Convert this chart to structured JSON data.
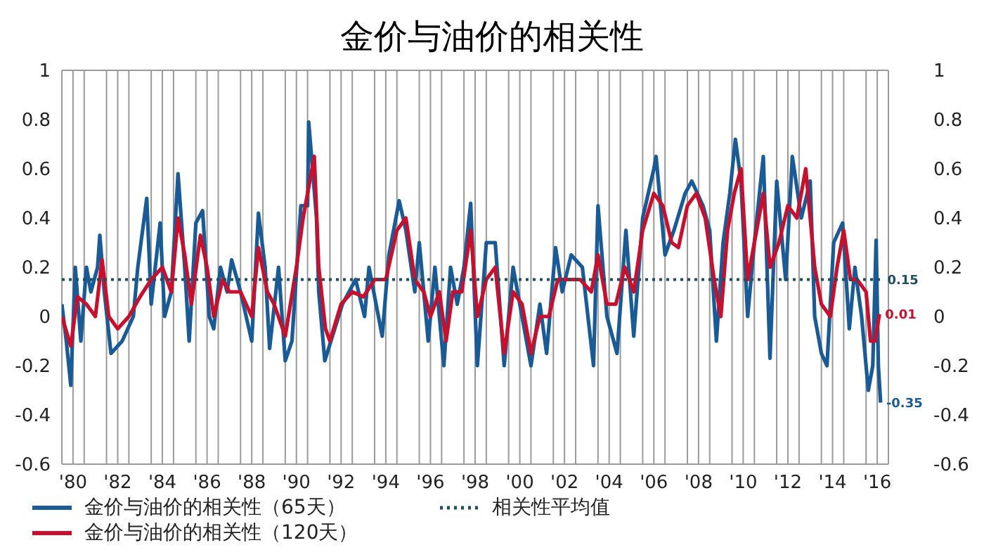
{
  "chart_data": {
    "type": "line",
    "title": "金价与油价的相关性",
    "xlim": [
      1979.5,
      2016.5
    ],
    "xticks": [
      {
        "value": 1980,
        "label": "'80"
      },
      {
        "value": 1982,
        "label": "'82"
      },
      {
        "value": 1984,
        "label": "'84"
      },
      {
        "value": 1986,
        "label": "'86"
      },
      {
        "value": 1988,
        "label": "'88"
      },
      {
        "value": 1990,
        "label": "'90"
      },
      {
        "value": 1992,
        "label": "'92"
      },
      {
        "value": 1994,
        "label": "'94"
      },
      {
        "value": 1996,
        "label": "'96"
      },
      {
        "value": 1998,
        "label": "'98"
      },
      {
        "value": 2000,
        "label": "'00"
      },
      {
        "value": 2002,
        "label": "'02"
      },
      {
        "value": 2004,
        "label": "'04"
      },
      {
        "value": 2006,
        "label": "'06"
      },
      {
        "value": 2008,
        "label": "'08"
      },
      {
        "value": 2010,
        "label": "'10"
      },
      {
        "value": 2012,
        "label": "'12"
      },
      {
        "value": 2014,
        "label": "'14"
      },
      {
        "value": 2016,
        "label": "'16"
      },
      {
        "value": 1980.5,
        "label": null
      },
      {
        "value": 1981.5,
        "label": null
      },
      {
        "value": 1982.5,
        "label": null
      },
      {
        "value": 1983.5,
        "label": null
      },
      {
        "value": 1984.5,
        "label": null
      },
      {
        "value": 1985.5,
        "label": null
      },
      {
        "value": 1986.5,
        "label": null
      },
      {
        "value": 1987.5,
        "label": null
      },
      {
        "value": 1988.5,
        "label": null
      },
      {
        "value": 1989.5,
        "label": null
      },
      {
        "value": 1990.5,
        "label": null
      },
      {
        "value": 1991.5,
        "label": null
      },
      {
        "value": 1992.5,
        "label": null
      },
      {
        "value": 1993.5,
        "label": null
      },
      {
        "value": 1994.5,
        "label": null
      },
      {
        "value": 1995.5,
        "label": null
      },
      {
        "value": 1996.5,
        "label": null
      },
      {
        "value": 1997.5,
        "label": null
      },
      {
        "value": 1998.5,
        "label": null
      },
      {
        "value": 1999.5,
        "label": null
      },
      {
        "value": 2000.5,
        "label": null
      },
      {
        "value": 2001.5,
        "label": null
      },
      {
        "value": 2002.5,
        "label": null
      },
      {
        "value": 2003.5,
        "label": null
      },
      {
        "value": 2004.5,
        "label": null
      },
      {
        "value": 2005.5,
        "label": null
      },
      {
        "value": 2006.5,
        "label": null
      },
      {
        "value": 2007.5,
        "label": null
      },
      {
        "value": 2008.5,
        "label": null
      },
      {
        "value": 2009.5,
        "label": null
      },
      {
        "value": 2010.5,
        "label": null
      },
      {
        "value": 2011.5,
        "label": null
      },
      {
        "value": 2012.5,
        "label": null
      },
      {
        "value": 2013.5,
        "label": null
      },
      {
        "value": 2014.5,
        "label": null
      },
      {
        "value": 2015.5,
        "label": null
      },
      {
        "value": 2016.5,
        "label": null
      }
    ],
    "ylim": [
      -0.6,
      1
    ],
    "yticks": [
      -0.6,
      -0.4,
      -0.2,
      0,
      0.2,
      0.4,
      0.6,
      0.8,
      1
    ],
    "y2lim": [
      -0.6,
      1
    ],
    "y2ticks": [
      -0.6,
      -0.4,
      -0.2,
      0,
      0.2,
      0.4,
      0.6,
      0.8,
      1
    ],
    "grid": true,
    "legend": "bottom left",
    "series": [
      {
        "name": "金价与油价的相关性（65天）",
        "color": "#1a5b96",
        "x": [
          1979.5,
          1979.7,
          1979.9,
          1980.1,
          1980.35,
          1980.6,
          1980.8,
          1981.1,
          1981.2,
          1981.4,
          1981.7,
          1982.2,
          1982.7,
          1982.9,
          1983.3,
          1983.5,
          1983.9,
          1984.1,
          1984.4,
          1984.7,
          1985.0,
          1985.2,
          1985.5,
          1985.8,
          1986.1,
          1986.3,
          1986.6,
          1986.9,
          1987.1,
          1987.5,
          1988.0,
          1988.3,
          1988.6,
          1988.8,
          1989.2,
          1989.5,
          1989.8,
          1990.2,
          1990.5,
          1990.55,
          1990.9,
          1991.0,
          1991.27,
          1992.06,
          1992.65,
          1993.05,
          1993.25,
          1993.84,
          1994.14,
          1994.6,
          1994.9,
          1995.3,
          1995.5,
          1995.9,
          1996.2,
          1996.6,
          1996.9,
          1997.2,
          1997.5,
          1997.8,
          1998.1,
          1998.5,
          1998.9,
          1999.3,
          1999.7,
          2000.1,
          2000.5,
          2000.9,
          2001.2,
          2001.6,
          2001.9,
          2002.3,
          2002.8,
          2003.3,
          2003.5,
          2003.9,
          2004.35,
          2004.75,
          2005.1,
          2005.5,
          2006.0,
          2006.1,
          2006.5,
          2006.9,
          2007.4,
          2007.7,
          2008.2,
          2008.5,
          2008.8,
          2009.1,
          2009.4,
          2009.65,
          2009.9,
          2010.2,
          2010.5,
          2010.9,
          2011.2,
          2011.5,
          2011.9,
          2012.2,
          2012.6,
          2013.0,
          2013.2,
          2013.5,
          2013.75,
          2014.05,
          2014.45,
          2014.75,
          2015.0,
          2015.3,
          2015.6,
          2015.8,
          2015.95,
          2016.05,
          2016.15
        ],
        "values": [
          0.05,
          -0.1,
          -0.28,
          0.2,
          -0.1,
          0.2,
          0.1,
          0.2,
          0.33,
          0.1,
          -0.15,
          -0.1,
          0.0,
          0.2,
          0.48,
          0.05,
          0.38,
          0.0,
          0.1,
          0.58,
          0.2,
          -0.1,
          0.38,
          0.43,
          0.0,
          -0.05,
          0.2,
          0.1,
          0.23,
          0.1,
          -0.1,
          0.42,
          0.2,
          -0.13,
          0.2,
          -0.18,
          -0.1,
          0.45,
          0.45,
          0.79,
          0.4,
          0.1,
          -0.18,
          0.05,
          0.15,
          0.0,
          0.2,
          -0.08,
          0.25,
          0.47,
          0.35,
          0.1,
          0.3,
          -0.1,
          0.2,
          -0.2,
          0.2,
          0.05,
          0.2,
          0.46,
          -0.2,
          0.3,
          0.3,
          -0.2,
          0.2,
          0.0,
          -0.2,
          0.05,
          -0.15,
          0.28,
          0.1,
          0.25,
          0.2,
          -0.2,
          0.45,
          0.0,
          -0.15,
          0.35,
          -0.08,
          0.4,
          0.6,
          0.65,
          0.25,
          0.35,
          0.5,
          0.55,
          0.45,
          0.35,
          -0.1,
          0.3,
          0.5,
          0.72,
          0.55,
          0.0,
          0.3,
          0.65,
          -0.17,
          0.55,
          0.15,
          0.65,
          0.4,
          0.55,
          0.0,
          -0.15,
          -0.2,
          0.3,
          0.38,
          -0.05,
          0.2,
          0.0,
          -0.3,
          -0.2,
          0.31,
          -0.2,
          -0.35
        ]
      },
      {
        "name": "金价与油价的相关性（120天）",
        "color": "#c8102e",
        "x": [
          1979.5,
          1979.9,
          1980.2,
          1980.6,
          1981.0,
          1981.3,
          1981.6,
          1982.0,
          1982.5,
          1983.0,
          1983.5,
          1984.0,
          1984.4,
          1984.7,
          1985.0,
          1985.3,
          1985.7,
          1986.0,
          1986.3,
          1986.7,
          1987.0,
          1987.5,
          1988.0,
          1988.3,
          1988.7,
          1989.0,
          1989.5,
          1990.0,
          1990.3,
          1990.6,
          1990.8,
          1991.0,
          1991.3,
          1991.5,
          1992.0,
          1992.5,
          1993.0,
          1993.5,
          1994.0,
          1994.5,
          1994.9,
          1995.3,
          1995.7,
          1996.0,
          1996.4,
          1996.7,
          1997.0,
          1997.4,
          1997.8,
          1998.1,
          1998.5,
          1998.9,
          1999.3,
          1999.7,
          2000.1,
          2000.5,
          2000.9,
          2001.3,
          2001.7,
          2002.2,
          2002.7,
          2003.2,
          2003.5,
          2003.9,
          2004.3,
          2004.7,
          2005.1,
          2005.5,
          2006.0,
          2006.4,
          2006.8,
          2007.1,
          2007.5,
          2007.9,
          2008.3,
          2008.7,
          2009.0,
          2009.3,
          2009.6,
          2009.9,
          2010.2,
          2010.6,
          2010.9,
          2011.2,
          2011.6,
          2012.0,
          2012.4,
          2012.8,
          2013.2,
          2013.5,
          2013.9,
          2014.2,
          2014.5,
          2014.8,
          2015.1,
          2015.5,
          2015.7,
          2015.9,
          2016.1
        ],
        "values": [
          0.0,
          -0.12,
          0.08,
          0.05,
          0.0,
          0.23,
          0.0,
          -0.05,
          0.0,
          0.08,
          0.15,
          0.2,
          0.1,
          0.4,
          0.25,
          0.05,
          0.33,
          0.2,
          0.0,
          0.15,
          0.1,
          0.1,
          0.0,
          0.28,
          0.1,
          0.05,
          -0.08,
          0.2,
          0.4,
          0.55,
          0.65,
          0.2,
          -0.05,
          -0.1,
          0.05,
          0.1,
          0.08,
          0.15,
          0.15,
          0.35,
          0.4,
          0.15,
          0.1,
          0.0,
          0.1,
          -0.1,
          0.1,
          0.1,
          0.35,
          0.0,
          0.15,
          0.2,
          -0.15,
          0.1,
          0.05,
          -0.15,
          0.0,
          0.0,
          0.15,
          0.15,
          0.15,
          0.1,
          0.25,
          0.05,
          0.05,
          0.2,
          0.1,
          0.35,
          0.5,
          0.45,
          0.3,
          0.28,
          0.45,
          0.5,
          0.4,
          0.15,
          0.0,
          0.35,
          0.5,
          0.6,
          0.15,
          0.35,
          0.5,
          0.2,
          0.3,
          0.45,
          0.4,
          0.6,
          0.2,
          0.05,
          0.0,
          0.2,
          0.35,
          0.15,
          0.15,
          0.1,
          -0.1,
          -0.1,
          0.01
        ]
      },
      {
        "name": "相关性平均值",
        "color": "#1f4e5f",
        "line_style": "dotted",
        "x": [
          1979.5,
          2016.2
        ],
        "values": [
          0.15,
          0.15
        ]
      }
    ],
    "annotations": [
      {
        "text": "0.15",
        "x": 2016.2,
        "y": 0.15
      },
      {
        "text": "0.01",
        "x": 2016.1,
        "y": 0.01
      },
      {
        "text": "-0.35",
        "x": 2016.15,
        "y": -0.35
      }
    ]
  }
}
